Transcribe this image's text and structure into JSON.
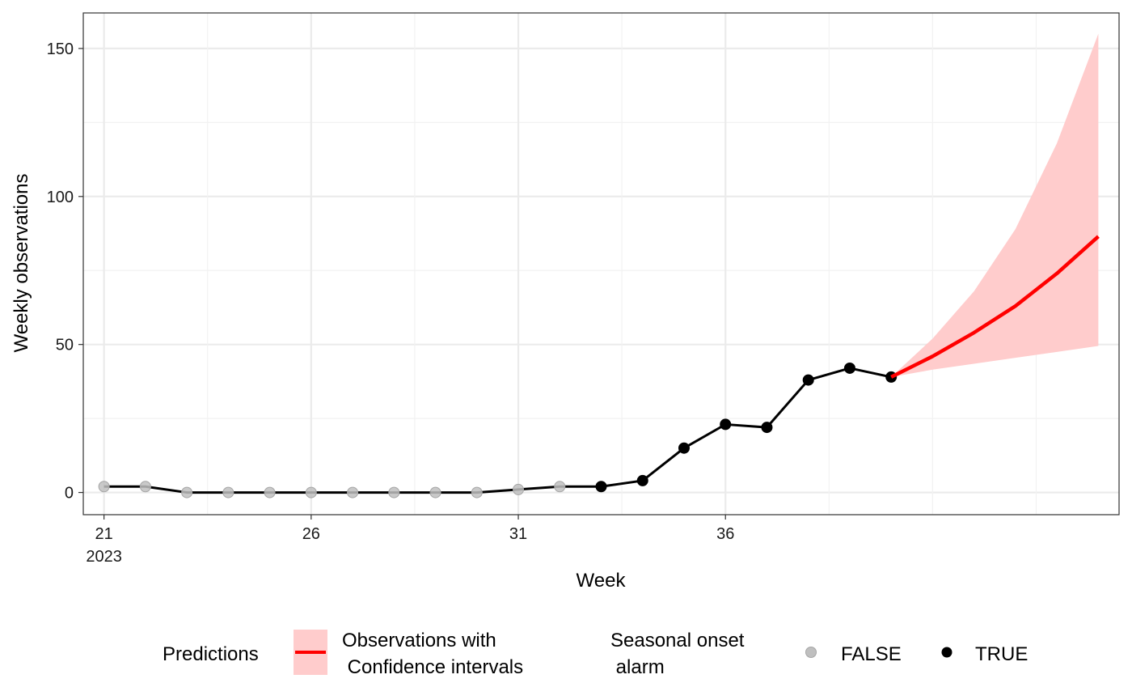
{
  "chart_data": {
    "type": "line",
    "xlabel": "Week",
    "ylabel": "Weekly observations",
    "xlim": [
      20.5,
      45.5
    ],
    "ylim": [
      -7.5,
      162
    ],
    "y_ticks": [
      0,
      50,
      100,
      150
    ],
    "x_ticks": [
      {
        "value": 21,
        "label": "21",
        "sublabel": "2023"
      },
      {
        "value": 26,
        "label": "26",
        "sublabel": ""
      },
      {
        "value": 31,
        "label": "31",
        "sublabel": ""
      },
      {
        "value": 36,
        "label": "36",
        "sublabel": ""
      }
    ],
    "x_minor_lines": [
      21,
      23.5,
      26,
      28.5,
      31,
      33.5,
      36,
      38.5,
      41,
      43.5
    ],
    "y_minor_lines": [
      25,
      75,
      125
    ],
    "grid": true,
    "observations": {
      "week": [
        21,
        22,
        23,
        24,
        25,
        26,
        27,
        28,
        29,
        30,
        31,
        32,
        33,
        34,
        35,
        36,
        37,
        38,
        39,
        40
      ],
      "value": [
        2,
        2,
        0,
        0,
        0,
        0,
        0,
        0,
        0,
        0,
        1,
        2,
        2,
        4,
        15,
        23,
        22,
        38,
        42,
        39
      ],
      "seasonal_onset_alarm": [
        false,
        false,
        false,
        false,
        false,
        false,
        false,
        false,
        false,
        false,
        false,
        false,
        true,
        true,
        true,
        true,
        true,
        true,
        true,
        true
      ]
    },
    "predictions": {
      "week": [
        40,
        41,
        42,
        43,
        44,
        45
      ],
      "estimate": [
        39,
        46,
        54,
        63,
        74,
        86.5
      ],
      "lower": [
        39,
        41.5,
        43.5,
        45.5,
        47.5,
        49.5
      ],
      "upper": [
        39,
        52,
        68,
        89,
        118,
        155
      ]
    },
    "colors": {
      "line": "#000000",
      "prediction": "#ff0000",
      "ribbon": "#ffcccc",
      "onset_false": "#bfbfbf",
      "onset_true": "#000000",
      "grid_major": "#ebebeb",
      "grid_minor": "#f2f2f2",
      "panel_border": "#333333"
    },
    "legend": {
      "position": "bottom",
      "predictions_title": "Predictions",
      "predictions_label_line1": "Observations with",
      "predictions_label_line2": " Confidence intervals",
      "onset_title_line1": "Seasonal onset",
      "onset_title_line2": " alarm",
      "onset_false_label": "FALSE",
      "onset_true_label": "TRUE"
    }
  }
}
